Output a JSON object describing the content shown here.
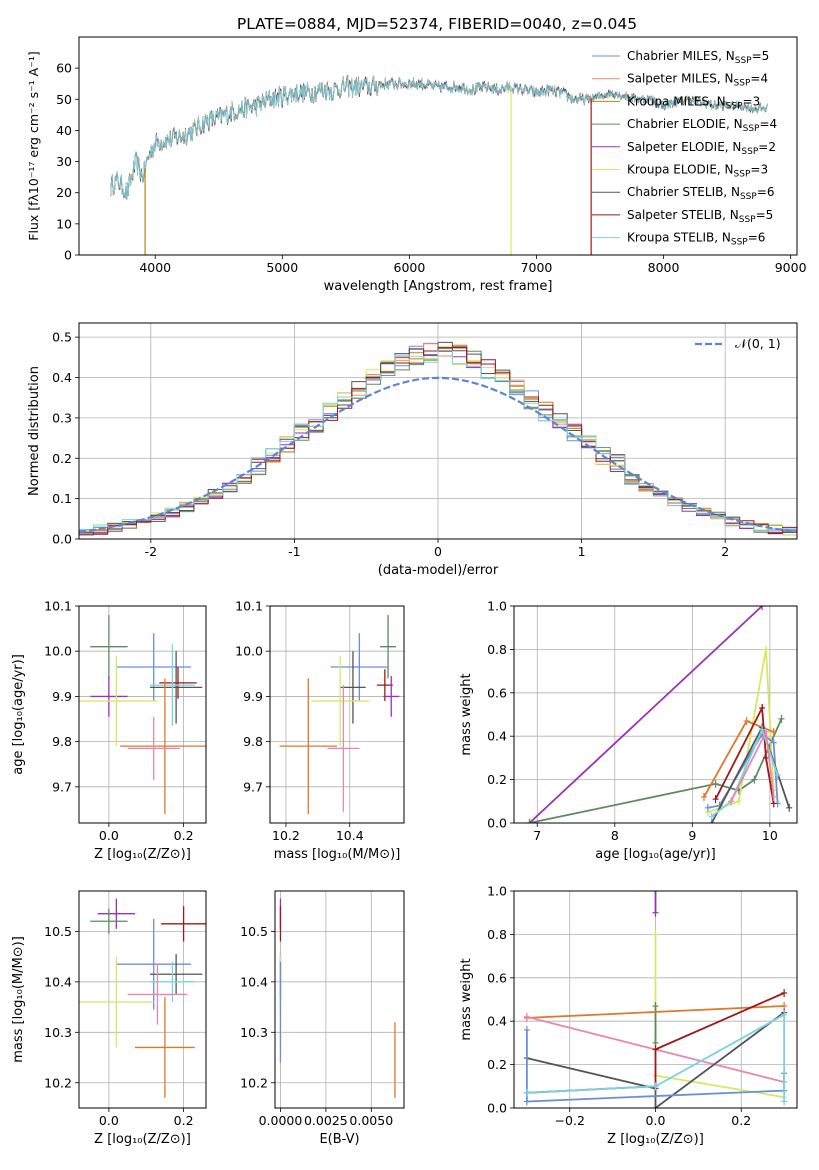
{
  "figure": {
    "title": "PLATE=0884, MJD=52374, FIBERID=0040, z=0.045"
  },
  "colors": {
    "chabrier_miles": "#6a8fd9",
    "salpeter_miles": "#f08a70",
    "kroupa_miles": "#b8860b",
    "chabrier_elodie": "#5e8a60",
    "salpeter_elodie": "#9a32b8",
    "kroupa_elodie": "#d8e860",
    "chabrier_stelib": "#555555",
    "salpeter_stelib": "#a01818",
    "kroupa_stelib": "#7ad4e0",
    "gauss": "#5b85d9",
    "orange": "#e07828",
    "pink": "#e888b0"
  },
  "chart_data": [
    {
      "id": "spectrum",
      "type": "line",
      "xlabel": "wavelength [Angstrom, rest frame]",
      "ylabel": "Flux [fλ10⁻¹⁷ erg cm⁻² s⁻¹ A⁻¹]",
      "xlim": [
        3400,
        9050
      ],
      "ylim": [
        0,
        70
      ],
      "xticks": [
        4000,
        5000,
        6000,
        7000,
        8000,
        9000
      ],
      "yticks": [
        0,
        10,
        20,
        30,
        40,
        50,
        60
      ],
      "grid": false,
      "legend_position": "top-right",
      "continuum": [
        [
          3650,
          22
        ],
        [
          3700,
          24
        ],
        [
          3780,
          20
        ],
        [
          3850,
          30
        ],
        [
          3900,
          25
        ],
        [
          3950,
          32
        ],
        [
          4000,
          36
        ],
        [
          4100,
          37
        ],
        [
          4200,
          38
        ],
        [
          4300,
          40
        ],
        [
          4400,
          43
        ],
        [
          4500,
          44
        ],
        [
          4600,
          46
        ],
        [
          4700,
          47
        ],
        [
          4800,
          48
        ],
        [
          4900,
          50
        ],
        [
          5000,
          51
        ],
        [
          5100,
          52
        ],
        [
          5200,
          52
        ],
        [
          5300,
          53
        ],
        [
          5400,
          53
        ],
        [
          5500,
          54
        ],
        [
          5600,
          54
        ],
        [
          5700,
          54
        ],
        [
          5800,
          55
        ],
        [
          5900,
          55
        ],
        [
          6000,
          55
        ],
        [
          6100,
          55
        ],
        [
          6200,
          54
        ],
        [
          6300,
          54
        ],
        [
          6400,
          54
        ],
        [
          6500,
          53
        ],
        [
          6600,
          54
        ],
        [
          6700,
          53
        ],
        [
          6800,
          54
        ],
        [
          6900,
          53
        ],
        [
          7000,
          52
        ],
        [
          7100,
          53
        ],
        [
          7200,
          52
        ],
        [
          7300,
          50
        ],
        [
          7400,
          50
        ],
        [
          7500,
          51
        ],
        [
          7600,
          52
        ],
        [
          7700,
          51
        ],
        [
          7800,
          50
        ],
        [
          7900,
          50
        ],
        [
          8000,
          48
        ],
        [
          8100,
          49
        ],
        [
          8200,
          50
        ],
        [
          8300,
          49
        ],
        [
          8400,
          48
        ],
        [
          8500,
          48
        ],
        [
          8600,
          48
        ],
        [
          8700,
          47
        ],
        [
          8800,
          47
        ]
      ],
      "dropouts_x": [
        3920,
        6800,
        7430
      ],
      "series": [
        {
          "name": "Chabrier MILES, N",
          "sub": "SSP",
          "n": "=5",
          "color_key": "chabrier_miles"
        },
        {
          "name": "Salpeter MILES, N",
          "sub": "SSP",
          "n": "=4",
          "color_key": "salpeter_miles"
        },
        {
          "name": "Kroupa MILES, N",
          "sub": "SSP",
          "n": "=3",
          "color_key": "kroupa_miles"
        },
        {
          "name": "Chabrier ELODIE, N",
          "sub": "SSP",
          "n": "=4",
          "color_key": "chabrier_elodie"
        },
        {
          "name": "Salpeter ELODIE, N",
          "sub": "SSP",
          "n": "=2",
          "color_key": "salpeter_elodie"
        },
        {
          "name": "Kroupa ELODIE, N",
          "sub": "SSP",
          "n": "=3",
          "color_key": "kroupa_elodie"
        },
        {
          "name": "Chabrier STELIB, N",
          "sub": "SSP",
          "n": "=6",
          "color_key": "chabrier_stelib"
        },
        {
          "name": "Salpeter STELIB, N",
          "sub": "SSP",
          "n": "=5",
          "color_key": "salpeter_stelib"
        },
        {
          "name": "Kroupa STELIB, N",
          "sub": "SSP",
          "n": "=6",
          "color_key": "kroupa_stelib"
        }
      ]
    },
    {
      "id": "residuals",
      "type": "histogram",
      "xlabel": "(data-model)/error",
      "ylabel": "Normed distribution",
      "xlim": [
        -2.5,
        2.5
      ],
      "ylim": [
        0,
        0.535
      ],
      "xticks": [
        -2,
        -1,
        0,
        1,
        2
      ],
      "yticks": [
        0.0,
        0.1,
        0.2,
        0.3,
        0.4,
        0.5
      ],
      "grid": true,
      "legend_position": "top-right",
      "legend": "𝒩(0, 1)",
      "bin_width": 0.1,
      "color_keys": [
        "chabrier_miles",
        "salpeter_miles",
        "kroupa_miles",
        "chabrier_elodie",
        "salpeter_elodie",
        "kroupa_elodie",
        "chabrier_stelib",
        "salpeter_stelib",
        "kroupa_stelib"
      ]
    },
    {
      "id": "age_vs_Z",
      "type": "errorbar",
      "xlabel": "Z [log₁₀(Z/Z⊙)]",
      "ylabel": "age  [log₁₀(age/yr)]",
      "xlim": [
        -0.08,
        0.26
      ],
      "ylim": [
        9.62,
        10.1
      ],
      "xticks": [
        0.0,
        0.2
      ],
      "xticklabels": [
        "0.0",
        "0.2"
      ],
      "yticks": [
        9.7,
        9.8,
        9.9,
        10.0,
        10.1
      ],
      "grid": true,
      "points": [
        {
          "x": 0.0,
          "y": 10.01,
          "xerr": 0.05,
          "yerr": 0.07,
          "color_key": "chabrier_elodie"
        },
        {
          "x": 0.12,
          "y": 9.965,
          "xerr": 0.1,
          "yerr": 0.075,
          "color_key": "chabrier_miles"
        },
        {
          "x": 0.18,
          "y": 9.92,
          "xerr": 0.07,
          "yerr": 0.08,
          "color_key": "chabrier_stelib"
        },
        {
          "x": 0.185,
          "y": 9.93,
          "xerr": 0.05,
          "yerr": 0.035,
          "color_key": "salpeter_stelib"
        },
        {
          "x": 0.17,
          "y": 9.925,
          "xerr": 0.06,
          "yerr": 0.09,
          "color_key": "kroupa_stelib"
        },
        {
          "x": 0.0,
          "y": 9.9,
          "xerr": 0.05,
          "yerr": 0.045,
          "color_key": "salpeter_elodie"
        },
        {
          "x": 0.02,
          "y": 9.89,
          "xerr": 0.11,
          "yerr": 0.1,
          "color_key": "kroupa_elodie"
        },
        {
          "x": 0.15,
          "y": 9.79,
          "xerr": 0.12,
          "yerr": 0.15,
          "color_key": "orange"
        },
        {
          "x": 0.12,
          "y": 9.785,
          "xerr": 0.07,
          "yerr": 0.07,
          "color_key": "pink"
        }
      ]
    },
    {
      "id": "age_vs_mass",
      "type": "errorbar",
      "xlabel": "mass [log₁₀(M/M⊙)]",
      "ylabel": "",
      "xlim": [
        10.15,
        10.57
      ],
      "ylim": [
        9.62,
        10.1
      ],
      "xticks": [
        10.2,
        10.4
      ],
      "xticklabels": [
        "10.2",
        "10.4"
      ],
      "yticks": [
        9.7,
        9.8,
        9.9,
        10.0,
        10.1
      ],
      "grid": true,
      "points": [
        {
          "x": 10.52,
          "y": 10.01,
          "xerr": 0.025,
          "yerr": 0.07,
          "color_key": "chabrier_elodie"
        },
        {
          "x": 10.43,
          "y": 9.965,
          "xerr": 0.09,
          "yerr": 0.075,
          "color_key": "chabrier_miles"
        },
        {
          "x": 10.41,
          "y": 9.92,
          "xerr": 0.04,
          "yerr": 0.08,
          "color_key": "chabrier_stelib"
        },
        {
          "x": 10.51,
          "y": 9.925,
          "xerr": 0.025,
          "yerr": 0.035,
          "color_key": "salpeter_stelib"
        },
        {
          "x": 10.53,
          "y": 9.9,
          "xerr": 0.025,
          "yerr": 0.045,
          "color_key": "salpeter_elodie"
        },
        {
          "x": 10.37,
          "y": 9.89,
          "xerr": 0.09,
          "yerr": 0.1,
          "color_key": "kroupa_elodie"
        },
        {
          "x": 10.27,
          "y": 9.79,
          "xerr": 0.09,
          "yerr": 0.15,
          "color_key": "orange"
        },
        {
          "x": 10.38,
          "y": 9.785,
          "xerr": 0.05,
          "yerr": 0.14,
          "color_key": "pink"
        }
      ]
    },
    {
      "id": "weight_vs_age",
      "type": "line",
      "xlabel": "age  [log₁₀(age/yr)]",
      "ylabel": "mass weight",
      "xlim": [
        6.7,
        10.35
      ],
      "ylim": [
        0,
        1.0
      ],
      "xticks": [
        7,
        8,
        9,
        10
      ],
      "yticks": [
        0.0,
        0.2,
        0.4,
        0.6,
        0.8,
        1.0
      ],
      "grid": true,
      "series": [
        {
          "color_key": "salpeter_elodie",
          "points": [
            [
              6.9,
              0.0
            ],
            [
              9.9,
              1.0
            ]
          ]
        },
        {
          "color_key": "chabrier_elodie",
          "points": [
            [
              6.9,
              0.0
            ],
            [
              9.3,
              0.18
            ],
            [
              9.6,
              0.15
            ],
            [
              9.8,
              0.2
            ],
            [
              10.15,
              0.48
            ]
          ]
        },
        {
          "color_key": "kroupa_elodie",
          "points": [
            [
              9.2,
              0.05
            ],
            [
              9.6,
              0.1
            ],
            [
              9.95,
              0.8
            ],
            [
              10.05,
              0.15
            ]
          ]
        },
        {
          "color_key": "orange",
          "points": [
            [
              9.15,
              0.12
            ],
            [
              9.7,
              0.47
            ],
            [
              10.05,
              0.42
            ]
          ]
        },
        {
          "color_key": "chabrier_miles",
          "points": [
            [
              9.2,
              0.07
            ],
            [
              9.35,
              0.08
            ],
            [
              9.9,
              0.41
            ],
            [
              10.05,
              0.37
            ],
            [
              10.1,
              0.09
            ]
          ]
        },
        {
          "color_key": "salpeter_stelib",
          "points": [
            [
              9.3,
              0.11
            ],
            [
              9.9,
              0.53
            ],
            [
              9.95,
              0.3
            ],
            [
              10.05,
              0.09
            ]
          ]
        },
        {
          "color_key": "chabrier_stelib",
          "points": [
            [
              9.25,
              0.0
            ],
            [
              9.9,
              0.44
            ],
            [
              10.25,
              0.07
            ]
          ]
        },
        {
          "color_key": "kroupa_stelib",
          "points": [
            [
              9.25,
              0.03
            ],
            [
              9.5,
              0.1
            ],
            [
              9.9,
              0.43
            ],
            [
              10.1,
              0.22
            ]
          ]
        },
        {
          "color_key": "pink",
          "points": [
            [
              9.5,
              0.1
            ],
            [
              9.95,
              0.42
            ],
            [
              10.05,
              0.12
            ]
          ]
        }
      ]
    },
    {
      "id": "mass_vs_Z",
      "type": "errorbar",
      "xlabel": "Z [log₁₀(Z/Z⊙)]",
      "ylabel": "mass [log₁₀(M/M⊙)]",
      "xlim": [
        -0.08,
        0.26
      ],
      "ylim": [
        10.15,
        10.58
      ],
      "xticks": [
        0.0,
        0.2
      ],
      "xticklabels": [
        "0.0",
        "0.2"
      ],
      "yticks": [
        10.2,
        10.3,
        10.4,
        10.5
      ],
      "grid": true,
      "points": [
        {
          "x": 0.02,
          "y": 10.535,
          "xerr": 0.05,
          "yerr": 0.03,
          "color_key": "salpeter_elodie"
        },
        {
          "x": 0.0,
          "y": 10.52,
          "xerr": 0.05,
          "yerr": 0.025,
          "color_key": "chabrier_elodie"
        },
        {
          "x": 0.2,
          "y": 10.515,
          "xerr": 0.06,
          "yerr": 0.035,
          "color_key": "salpeter_stelib"
        },
        {
          "x": 0.12,
          "y": 10.435,
          "xerr": 0.1,
          "yerr": 0.09,
          "color_key": "chabrier_miles"
        },
        {
          "x": 0.18,
          "y": 10.415,
          "xerr": 0.07,
          "yerr": 0.04,
          "color_key": "chabrier_stelib"
        },
        {
          "x": 0.17,
          "y": 10.4,
          "xerr": 0.06,
          "yerr": 0.04,
          "color_key": "kroupa_stelib"
        },
        {
          "x": 0.13,
          "y": 10.375,
          "xerr": 0.08,
          "yerr": 0.06,
          "color_key": "pink"
        },
        {
          "x": 0.02,
          "y": 10.36,
          "xerr": 0.1,
          "yerr": 0.09,
          "color_key": "kroupa_elodie"
        },
        {
          "x": 0.15,
          "y": 10.27,
          "xerr": 0.08,
          "yerr": 0.1,
          "color_key": "orange"
        }
      ]
    },
    {
      "id": "mass_vs_ebv",
      "type": "errorbar",
      "xlabel": "E(B-V)",
      "ylabel": "",
      "xlim": [
        -0.0003,
        0.0068
      ],
      "ylim": [
        10.15,
        10.58
      ],
      "xticks": [
        0.0,
        0.0025,
        0.005
      ],
      "xticklabels": [
        "0.0000",
        "0.0025",
        "0.0050"
      ],
      "yticks": [
        10.2,
        10.3,
        10.4,
        10.5
      ],
      "grid": true,
      "points": [
        {
          "x": 0.0,
          "y": 10.535,
          "xerr": 0,
          "yerr": 0.03,
          "color_key": "salpeter_elodie"
        },
        {
          "x": 0.0,
          "y": 10.515,
          "xerr": 0,
          "yerr": 0.035,
          "color_key": "salpeter_stelib"
        },
        {
          "x": 0.0,
          "y": 10.41,
          "xerr": 0,
          "yerr": 0.04,
          "color_key": "chabrier_stelib"
        },
        {
          "x": 0.0,
          "y": 10.4,
          "xerr": 0,
          "yerr": 0.06,
          "color_key": "kroupa_stelib"
        },
        {
          "x": 0.0,
          "y": 10.36,
          "xerr": 0,
          "yerr": 0.09,
          "color_key": "kroupa_elodie"
        },
        {
          "x": 0.0,
          "y": 10.34,
          "xerr": 0,
          "yerr": 0.1,
          "color_key": "chabrier_miles"
        },
        {
          "x": 0.0063,
          "y": 10.245,
          "xerr": 0,
          "yerr": 0.075,
          "color_key": "orange"
        }
      ]
    },
    {
      "id": "weight_vs_Z",
      "type": "line",
      "xlabel": "Z [log₁₀(Z/Z⊙)]",
      "ylabel": "mass weight",
      "xlim": [
        -0.33,
        0.33
      ],
      "ylim": [
        0,
        1.0
      ],
      "xticks": [
        -0.2,
        0.0,
        0.2
      ],
      "xticklabels": [
        "−0.2",
        "0.0",
        "0.2"
      ],
      "yticks": [
        0.0,
        0.2,
        0.4,
        0.6,
        0.8,
        1.0
      ],
      "grid": true,
      "series": [
        {
          "color_key": "salpeter_elodie",
          "points": [
            [
              0.0,
              0.9
            ],
            [
              0.0,
              1.0
            ]
          ]
        },
        {
          "color_key": "kroupa_elodie",
          "points": [
            [
              0.0,
              0.8
            ],
            [
              0.0,
              0.15
            ],
            [
              0.3,
              0.05
            ]
          ]
        },
        {
          "color_key": "chabrier_elodie",
          "points": [
            [
              0.0,
              0.47
            ],
            [
              0.0,
              0.3
            ]
          ]
        },
        {
          "color_key": "orange",
          "points": [
            [
              -0.3,
              0.415
            ],
            [
              0.3,
              0.47
            ]
          ]
        },
        {
          "color_key": "pink",
          "points": [
            [
              -0.3,
              0.42
            ],
            [
              0.3,
              0.12
            ]
          ]
        },
        {
          "color_key": "salpeter_stelib",
          "points": [
            [
              -0.3,
              0.07
            ],
            [
              0.0,
              0.1
            ],
            [
              0.0,
              0.27
            ],
            [
              0.3,
              0.53
            ]
          ]
        },
        {
          "color_key": "chabrier_stelib",
          "points": [
            [
              -0.3,
              0.23
            ],
            [
              0.0,
              0.09
            ],
            [
              0.0,
              0.0
            ],
            [
              0.3,
              0.44
            ]
          ]
        },
        {
          "color_key": "chabrier_miles",
          "points": [
            [
              -0.3,
              0.36
            ],
            [
              -0.3,
              0.03
            ],
            [
              0.3,
              0.08
            ],
            [
              0.3,
              0.16
            ]
          ]
        },
        {
          "color_key": "kroupa_stelib",
          "points": [
            [
              -0.3,
              0.07
            ],
            [
              0.0,
              0.1
            ],
            [
              0.3,
              0.43
            ],
            [
              0.3,
              0.03
            ]
          ]
        }
      ]
    }
  ]
}
